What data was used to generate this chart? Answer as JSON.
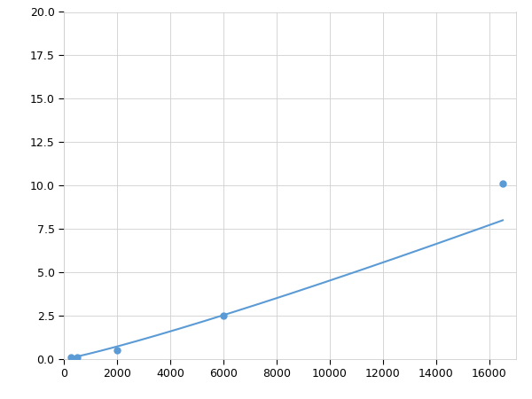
{
  "x_markers": [
    250,
    500,
    2000,
    6000,
    16500
  ],
  "y_markers": [
    0.1,
    0.12,
    0.5,
    2.5,
    10.1
  ],
  "line_color": "#5B9BD5",
  "marker_color": "#5B9BD5",
  "marker_size": 5,
  "line_width": 1.5,
  "xlim": [
    0,
    17000
  ],
  "ylim": [
    0,
    20
  ],
  "xticks": [
    0,
    2000,
    4000,
    6000,
    8000,
    10000,
    12000,
    14000,
    16000
  ],
  "yticks": [
    0.0,
    2.5,
    5.0,
    7.5,
    10.0,
    12.5,
    15.0,
    17.5,
    20.0
  ],
  "grid_color": "#d0d0d0",
  "background_color": "#ffffff",
  "tick_fontsize": 9
}
